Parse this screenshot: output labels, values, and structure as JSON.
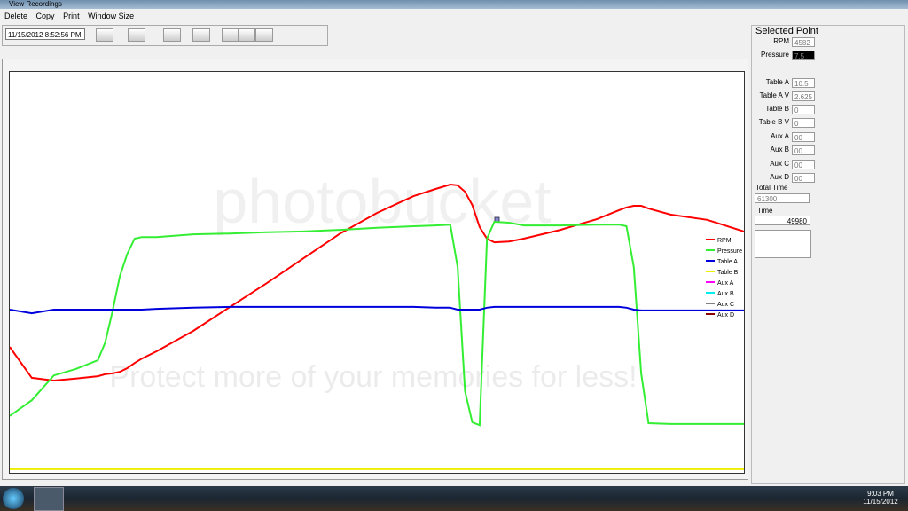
{
  "window": {
    "title": "View Recordings",
    "menu": [
      "Delete",
      "Copy",
      "Print",
      "Window Size"
    ],
    "date_select": "11/15/2012 8:52:56 PM"
  },
  "chart_data": {
    "type": "line",
    "watermark": [
      "photobucket",
      "Protect more of your memories for less!"
    ],
    "xlim": [
      0,
      100
    ],
    "ylim": [
      0,
      100
    ],
    "x": [
      0,
      3,
      6,
      9,
      12,
      13,
      14,
      15,
      16,
      17,
      18,
      20,
      25,
      30,
      35,
      40,
      45,
      50,
      55,
      58,
      60,
      61,
      62,
      63,
      64,
      65,
      66,
      68,
      70,
      75,
      80,
      83,
      84,
      85,
      86,
      87,
      90,
      95,
      100
    ],
    "series": [
      {
        "name": "RPM",
        "color": "#ff0000",
        "values": [
          31.4,
          23.7,
          23.0,
          23.5,
          24.1,
          24.6,
          24.8,
          25.2,
          26.1,
          27.4,
          28.5,
          30.3,
          35.4,
          41.4,
          47.3,
          53.5,
          59.7,
          64.8,
          69.0,
          70.8,
          71.9,
          71.7,
          70.1,
          66.8,
          61.3,
          58.4,
          57.5,
          57.7,
          58.4,
          60.6,
          63.3,
          65.5,
          66.2,
          66.6,
          66.6,
          65.9,
          64.4,
          63.1,
          60.2
        ]
      },
      {
        "name": "Pressure",
        "color": "#33ee33",
        "values": [
          14.2,
          18.1,
          24.3,
          25.9,
          28.1,
          32.5,
          40.3,
          49.1,
          54.6,
          58.4,
          58.8,
          58.8,
          59.5,
          59.7,
          60.0,
          60.2,
          60.6,
          61.1,
          61.5,
          61.7,
          61.9,
          51.3,
          20.4,
          12.6,
          11.9,
          58.4,
          62.6,
          62.4,
          61.7,
          61.7,
          61.9,
          61.9,
          61.5,
          51.3,
          24.8,
          12.4,
          12.2,
          12.2,
          12.2
        ]
      },
      {
        "name": "Table A",
        "color": "#0000dd",
        "values": [
          40.7,
          39.8,
          40.7,
          40.7,
          40.7,
          40.7,
          40.7,
          40.7,
          40.7,
          40.7,
          40.7,
          40.9,
          41.2,
          41.4,
          41.4,
          41.4,
          41.4,
          41.4,
          41.4,
          41.2,
          41.2,
          40.7,
          40.7,
          40.7,
          40.7,
          41.2,
          41.4,
          41.4,
          41.4,
          41.4,
          41.4,
          41.4,
          41.2,
          40.7,
          40.5,
          40.5,
          40.5,
          40.5,
          40.5
        ]
      },
      {
        "name": "Table B",
        "color": "#eeee00",
        "values": [
          0.9,
          0.9,
          0.9,
          0.9,
          0.9,
          0.9,
          0.9,
          0.9,
          0.9,
          0.9,
          0.9,
          0.9,
          0.9,
          0.9,
          0.9,
          0.9,
          0.9,
          0.9,
          0.9,
          0.9,
          0.9,
          0.9,
          0.9,
          0.9,
          0.9,
          0.9,
          0.9,
          0.9,
          0.9,
          0.9,
          0.9,
          0.9,
          0.9,
          0.9,
          0.9,
          0.9,
          0.9,
          0.9,
          0.9
        ]
      },
      {
        "name": "Aux A",
        "color": "#ff00ff",
        "values": [
          null,
          null,
          null,
          null,
          null,
          null,
          null,
          null,
          null,
          null,
          null,
          null,
          null,
          null,
          null,
          null,
          null,
          null,
          null,
          null,
          null,
          null,
          null,
          null,
          null,
          null,
          null,
          null,
          null,
          null,
          null,
          null,
          null,
          null,
          null,
          null,
          null,
          null,
          null
        ]
      },
      {
        "name": "Aux B",
        "color": "#00eeee",
        "values": [
          null,
          null,
          null,
          null,
          null,
          null,
          null,
          null,
          null,
          null,
          null,
          null,
          null,
          null,
          null,
          null,
          null,
          null,
          null,
          null,
          null,
          null,
          null,
          null,
          null,
          null,
          null,
          null,
          null,
          null,
          null,
          null,
          null,
          null,
          null,
          null,
          null,
          null,
          null
        ]
      },
      {
        "name": "Aux C",
        "color": "#808080",
        "values": [
          null,
          null,
          null,
          null,
          null,
          null,
          null,
          null,
          null,
          null,
          null,
          null,
          null,
          null,
          null,
          null,
          null,
          null,
          null,
          null,
          null,
          null,
          null,
          null,
          null,
          null,
          null,
          null,
          null,
          null,
          null,
          null,
          null,
          null,
          null,
          null,
          null,
          null,
          null
        ]
      },
      {
        "name": "Aux D",
        "color": "#8b0000",
        "values": [
          null,
          null,
          null,
          null,
          null,
          null,
          null,
          null,
          null,
          null,
          null,
          null,
          null,
          null,
          null,
          null,
          null,
          null,
          null,
          null,
          null,
          null,
          null,
          null,
          null,
          null,
          null,
          null,
          null,
          null,
          null,
          null,
          null,
          null,
          null,
          null,
          null,
          null,
          null
        ]
      }
    ]
  },
  "selected_point": {
    "title": "Selected Point",
    "fields": [
      [
        "RPM",
        "4582"
      ],
      [
        "Pressure",
        "7.5"
      ],
      [
        "Table A",
        "10.5"
      ],
      [
        "Table A V",
        "2.625"
      ],
      [
        "Table B",
        "0"
      ],
      [
        "Table B V",
        "0"
      ],
      [
        "Aux A",
        "00"
      ],
      [
        "Aux B",
        "00"
      ],
      [
        "Aux C",
        "00"
      ],
      [
        "Aux D",
        "00"
      ]
    ],
    "total_time_label": "Total Time",
    "total_time": "61300",
    "time_label": "Time",
    "time": "49980"
  },
  "taskbar": {
    "time": "9:03 PM",
    "date": "11/15/2012"
  }
}
